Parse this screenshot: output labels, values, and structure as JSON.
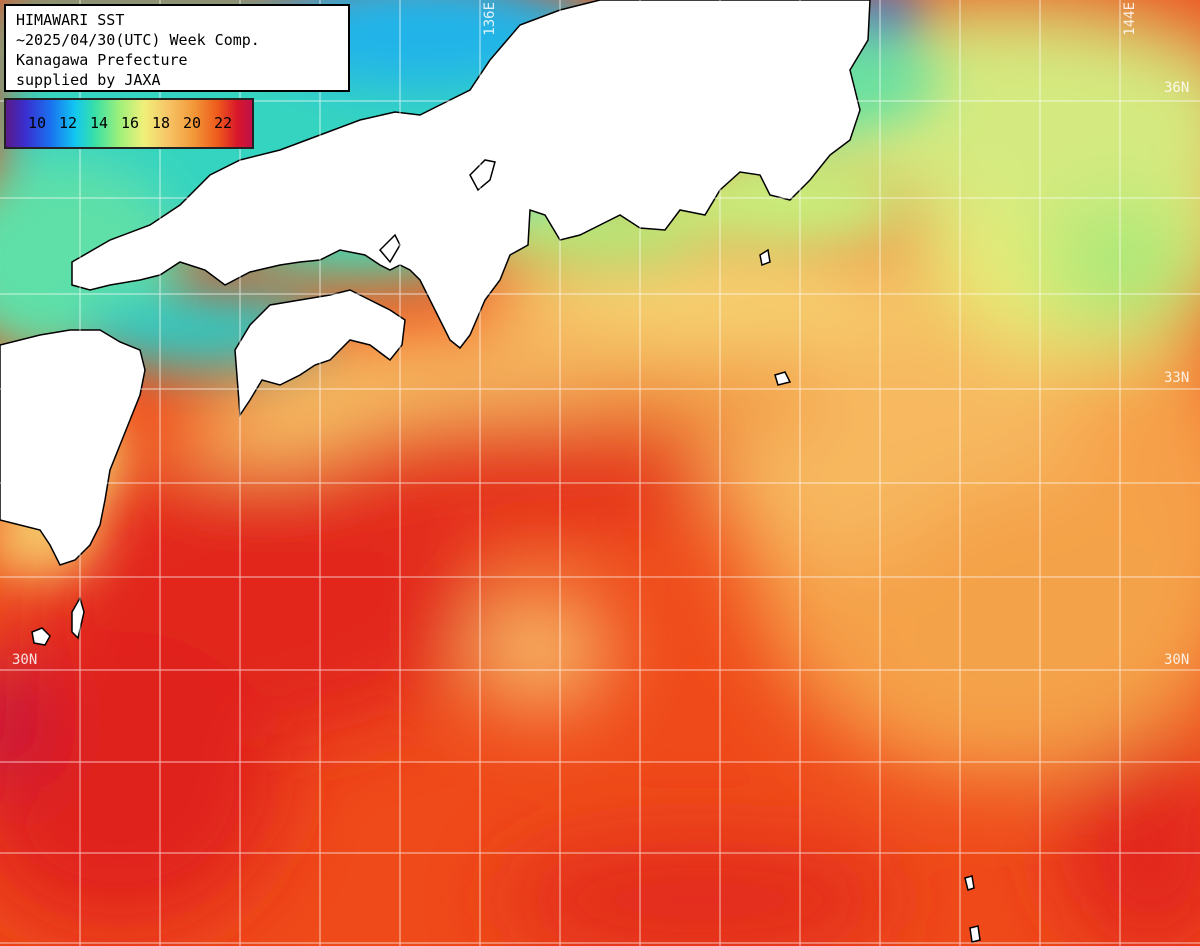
{
  "info": {
    "line1": "HIMAWARI SST",
    "line2": "~2025/04/30(UTC) Week Comp.",
    "line3": "Kanagawa Prefecture",
    "line4": "supplied by JAXA"
  },
  "legend": {
    "ticks": [
      "10",
      "12",
      "14",
      "16",
      "18",
      "20",
      "22"
    ],
    "unit_colors": [
      "#5a1a8a",
      "#1a70f0",
      "#12c6f0",
      "#9cf07a",
      "#f0f07a",
      "#f29a3a",
      "#d8172a"
    ]
  },
  "grid_labels": {
    "lon_136": "136E",
    "lon_144": "144E",
    "lat_36": "36N",
    "lat_33": "33N",
    "lat_30_left": "30N",
    "lat_30_right": "30N"
  },
  "colors": {
    "land": "#ffffff",
    "coastline": "#000000",
    "gridline": "#ffffff",
    "warm_sea": "#ef4a1a",
    "kuroshio": "#e02a18",
    "cool_sea": "#f6b85a",
    "cold_sea": "#38d8b0"
  }
}
